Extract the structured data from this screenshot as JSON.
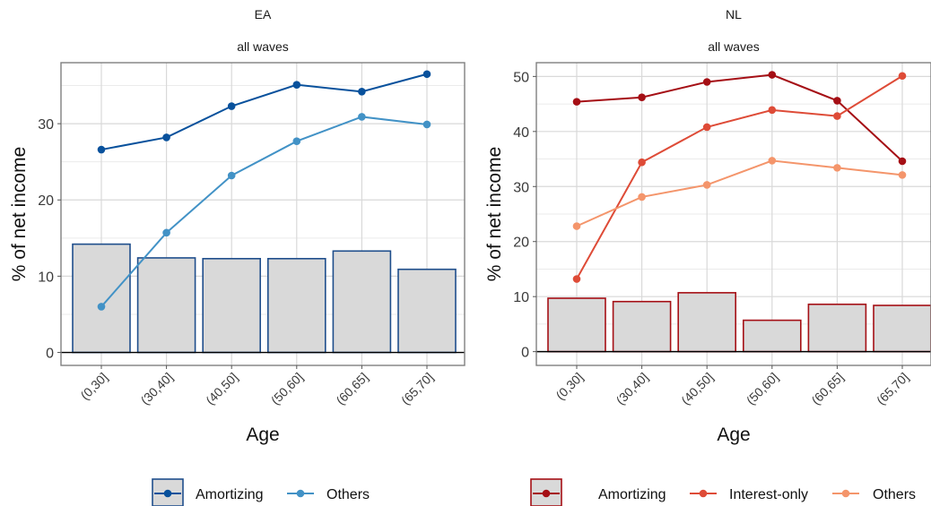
{
  "chart_data": [
    {
      "type": "bar+line",
      "title": "EA",
      "subtitle": "all waves",
      "xlabel": "Age",
      "ylabel": "% of net income",
      "categories": [
        "(0,30]",
        "(30,40]",
        "(40,50]",
        "(50,60]",
        "(60,65]",
        "(65,70]"
      ],
      "ylim": [
        -1.7,
        38
      ],
      "yticks": [
        0,
        10,
        20,
        30
      ],
      "grid": true,
      "bars": {
        "values": [
          14.2,
          12.4,
          12.3,
          12.3,
          13.3,
          10.9
        ],
        "fill": "#d9d9d9",
        "stroke": "#1f4e8c"
      },
      "series": [
        {
          "name": "Amortizing",
          "values": [
            26.6,
            28.2,
            32.3,
            35.1,
            34.2,
            36.5
          ],
          "color": "#08519c"
        },
        {
          "name": "Others",
          "values": [
            6.0,
            15.7,
            23.2,
            27.7,
            30.9,
            29.9
          ],
          "color": "#4292c6"
        }
      ],
      "legend_position": "bottom",
      "legend": {
        "items": [
          "Amortizing",
          "Others"
        ],
        "box_stroke": "#1f4e8c"
      }
    },
    {
      "type": "bar+line",
      "title": "NL",
      "subtitle": "all waves",
      "xlabel": "Age",
      "ylabel": "% of net income",
      "categories": [
        "(0,30]",
        "(30,40]",
        "(40,50]",
        "(50,60]",
        "(60,65]",
        "(65,70]"
      ],
      "ylim": [
        -2.5,
        52.5
      ],
      "yticks": [
        0,
        10,
        20,
        30,
        40,
        50
      ],
      "grid": true,
      "bars": {
        "values": [
          9.7,
          9.1,
          10.7,
          5.7,
          8.6,
          8.4
        ],
        "fill": "#d9d9d9",
        "stroke": "#a50f15"
      },
      "series": [
        {
          "name": "Amortizing",
          "values": [
            45.4,
            46.2,
            49.0,
            50.3,
            45.6,
            34.6
          ],
          "color": "#a50f15"
        },
        {
          "name": "Interest-only",
          "values": [
            13.2,
            34.4,
            40.8,
            43.9,
            42.8,
            50.1
          ],
          "color": "#de4b37"
        },
        {
          "name": "Others",
          "values": [
            22.8,
            28.1,
            30.3,
            34.7,
            33.4,
            32.1
          ],
          "color": "#f4956b"
        }
      ],
      "legend_position": "bottom",
      "legend": {
        "items": [
          "Amortizing",
          "Interest-only",
          "Others"
        ],
        "box_stroke": "#a50f15"
      }
    }
  ]
}
